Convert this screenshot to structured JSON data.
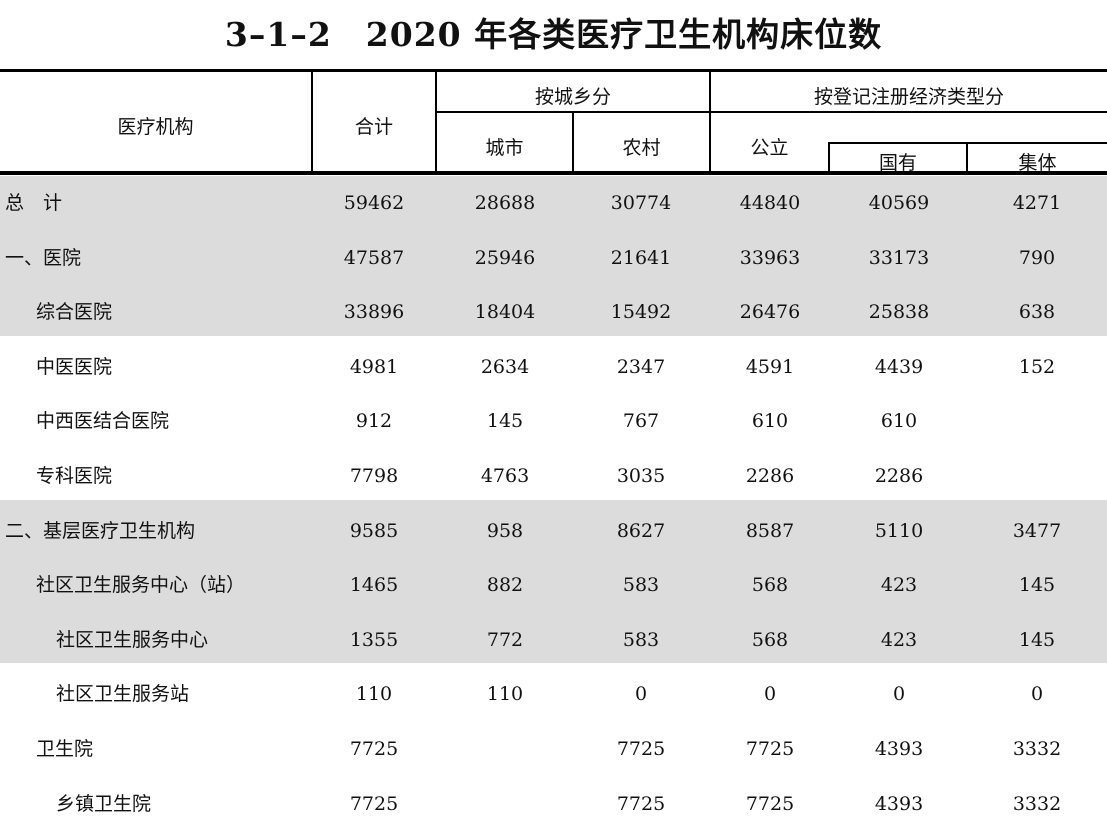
{
  "title": "3–1–2　2020 年各类医疗卫生机构床位数",
  "header": {
    "institution": "医疗机构",
    "total": "合计",
    "by_area": "按城乡分",
    "city": "城市",
    "rural": "农村",
    "by_registration": "按登记注册经济类型分",
    "public": "公立",
    "state_owned": "国有",
    "collective": "集体"
  },
  "rows": [
    {
      "name": "总　计",
      "indent": 0,
      "shaded": true,
      "cells": [
        "59462",
        "28688",
        "30774",
        "44840",
        "40569",
        "4271"
      ]
    },
    {
      "name": "一、医院",
      "indent": 0,
      "shaded": true,
      "cells": [
        "47587",
        "25946",
        "21641",
        "33963",
        "33173",
        "790"
      ]
    },
    {
      "name": "综合医院",
      "indent": 1,
      "shaded": true,
      "cells": [
        "33896",
        "18404",
        "15492",
        "26476",
        "25838",
        "638"
      ]
    },
    {
      "name": "中医医院",
      "indent": 1,
      "shaded": false,
      "cells": [
        "4981",
        "2634",
        "2347",
        "4591",
        "4439",
        "152"
      ]
    },
    {
      "name": "中西医结合医院",
      "indent": 1,
      "shaded": false,
      "cells": [
        "912",
        "145",
        "767",
        "610",
        "610",
        ""
      ]
    },
    {
      "name": "专科医院",
      "indent": 1,
      "shaded": false,
      "cells": [
        "7798",
        "4763",
        "3035",
        "2286",
        "2286",
        ""
      ]
    },
    {
      "name": "二、基层医疗卫生机构",
      "indent": 0,
      "shaded": true,
      "cells": [
        "9585",
        "958",
        "8627",
        "8587",
        "5110",
        "3477"
      ]
    },
    {
      "name": "社区卫生服务中心（站）",
      "indent": 1,
      "shaded": true,
      "cells": [
        "1465",
        "882",
        "583",
        "568",
        "423",
        "145"
      ]
    },
    {
      "name": "社区卫生服务中心",
      "indent": 2,
      "shaded": true,
      "cells": [
        "1355",
        "772",
        "583",
        "568",
        "423",
        "145"
      ]
    },
    {
      "name": "社区卫生服务站",
      "indent": 2,
      "shaded": false,
      "cells": [
        "110",
        "110",
        "0",
        "0",
        "0",
        "0"
      ]
    },
    {
      "name": "卫生院",
      "indent": 1,
      "shaded": false,
      "cells": [
        "7725",
        "",
        "7725",
        "7725",
        "4393",
        "3332"
      ]
    },
    {
      "name": "乡镇卫生院",
      "indent": 2,
      "shaded": false,
      "cells": [
        "7725",
        "",
        "7725",
        "7725",
        "4393",
        "3332"
      ]
    }
  ]
}
